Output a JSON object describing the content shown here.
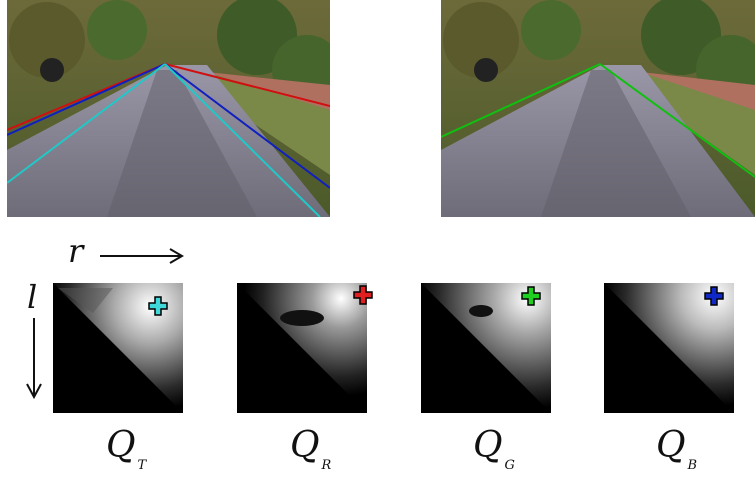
{
  "figure": {
    "photos": [
      {
        "name": "left-road-image",
        "lines": [
          {
            "color": "#d01010",
            "name": "red"
          },
          {
            "color": "#1020c0",
            "name": "blue"
          },
          {
            "color": "#20c8c8",
            "name": "cyan"
          }
        ]
      },
      {
        "name": "right-road-image",
        "lines": [
          {
            "color": "#10c010",
            "name": "green"
          }
        ]
      }
    ],
    "axes": {
      "horizontal_label": "r",
      "vertical_label": "l"
    },
    "maps": [
      {
        "letter": "Q",
        "subscript": "T",
        "marker_color": "#40d8d8"
      },
      {
        "letter": "Q",
        "subscript": "R",
        "marker_color": "#e02020"
      },
      {
        "letter": "Q",
        "subscript": "G",
        "marker_color": "#20d020"
      },
      {
        "letter": "Q",
        "subscript": "B",
        "marker_color": "#1028c8"
      }
    ]
  }
}
